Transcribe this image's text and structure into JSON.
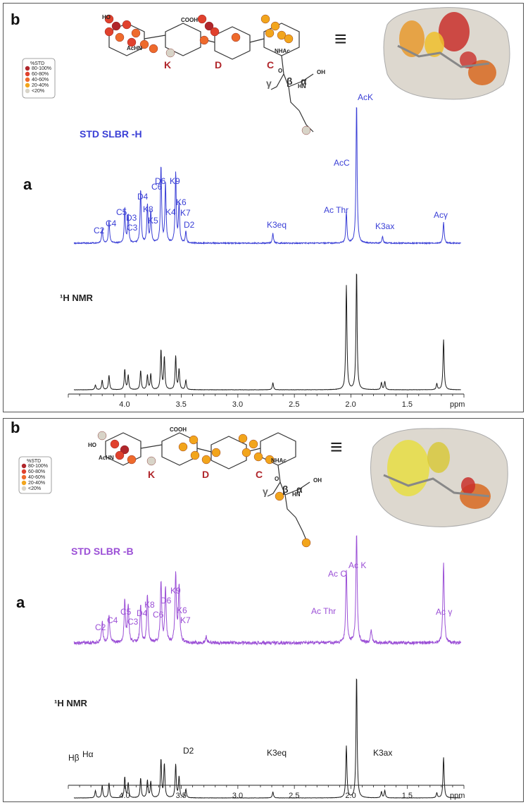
{
  "colors": {
    "std_top": "#3a3fd6",
    "std_bottom": "#9b4fd6",
    "nmr": "#1a1a1a",
    "p80": "#b0262b",
    "p60": "#e0412d",
    "p40": "#ee6a2c",
    "p20": "#f2a51c",
    "p0": "#d8d4c8"
  },
  "panel_top": {
    "label_b": "b",
    "label_a": "a",
    "std_title": "STD SLBR  -H",
    "nmr_title": "¹H NMR",
    "legend_title": "%STD",
    "legend_items": [
      "80-100%",
      "60-80%",
      "40-60%",
      "20-40%",
      "<20%"
    ],
    "rings": [
      "K",
      "D",
      "C"
    ],
    "greek": [
      "γ",
      "β",
      "α"
    ],
    "chem_labels": [
      "COOH",
      "AcHN",
      "HO",
      "NHAc",
      "HN",
      "O",
      "OH"
    ],
    "equiv": "≡",
    "std_peaks": [
      "C2",
      "C4",
      "C5",
      "D3",
      "C3",
      "D4",
      "K8",
      "K5",
      "C6",
      "D6",
      "K9",
      "K4",
      "K6",
      "K7",
      "D2",
      "K3eq",
      "Ac Thr",
      "AcC",
      "AcK",
      "K3ax",
      "Acγ"
    ],
    "nmr_peaks": []
  },
  "panel_bottom": {
    "label_b": "b",
    "label_a": "a",
    "std_title": "STD SLBR  -B",
    "nmr_title": "¹H NMR",
    "legend_title": "%STD",
    "legend_items": [
      "80-100%",
      "60-80%",
      "40-60%",
      "20-40%",
      "<20%"
    ],
    "rings": [
      "K",
      "D",
      "C"
    ],
    "greek": [
      "γ",
      "β",
      "α"
    ],
    "chem_labels": [
      "COOH",
      "AcHN",
      "HO",
      "NHAc",
      "HN",
      "O",
      "OH"
    ],
    "equiv": "≡",
    "std_peaks": [
      "C2",
      "C4",
      "C5",
      "C3",
      "D4",
      "K8",
      "C6",
      "D6",
      "K9",
      "K6",
      "K7",
      "Ac Thr",
      "Ac C",
      "Ac K",
      "Ac γ"
    ],
    "nmr_peaks": [
      "Hβ",
      "Hα",
      "D2",
      "K3eq",
      "K3ax"
    ]
  },
  "chart_data": [
    {
      "type": "line",
      "panel": "top",
      "xlabel": "ppm",
      "xlim": [
        4.5,
        1.0
      ],
      "x_ticks": [
        "4.0",
        "3.5",
        "3.0",
        "2.5",
        "2.0",
        "1.5",
        "ppm"
      ],
      "series": [
        {
          "name": "STD SLBR -H",
          "peaks": [
            [
              4.2,
              0.1
            ],
            [
              4.14,
              0.16
            ],
            [
              4.0,
              0.25
            ],
            [
              3.97,
              0.2
            ],
            [
              3.86,
              0.38
            ],
            [
              3.8,
              0.27
            ],
            [
              3.77,
              0.22
            ],
            [
              3.68,
              0.55
            ],
            [
              3.64,
              0.42
            ],
            [
              3.55,
              0.5
            ],
            [
              3.52,
              0.28
            ],
            [
              3.46,
              0.08
            ],
            [
              2.69,
              0.07
            ],
            [
              2.04,
              0.22
            ],
            [
              1.95,
              1.0
            ],
            [
              1.72,
              0.05
            ],
            [
              1.18,
              0.15
            ]
          ]
        },
        {
          "name": "1H NMR",
          "peaks": [
            [
              4.26,
              0.04
            ],
            [
              4.2,
              0.08
            ],
            [
              4.14,
              0.12
            ],
            [
              4.0,
              0.17
            ],
            [
              3.97,
              0.12
            ],
            [
              3.86,
              0.16
            ],
            [
              3.8,
              0.12
            ],
            [
              3.77,
              0.13
            ],
            [
              3.68,
              0.33
            ],
            [
              3.65,
              0.27
            ],
            [
              3.55,
              0.28
            ],
            [
              3.52,
              0.17
            ],
            [
              3.46,
              0.08
            ],
            [
              2.69,
              0.06
            ],
            [
              2.04,
              0.87
            ],
            [
              1.95,
              1.0
            ],
            [
              1.73,
              0.06
            ],
            [
              1.7,
              0.07
            ],
            [
              1.24,
              0.05
            ],
            [
              1.18,
              0.42
            ]
          ]
        }
      ]
    },
    {
      "type": "line",
      "panel": "bottom",
      "xlabel": "ppm",
      "xlim": [
        4.5,
        1.0
      ],
      "x_ticks": [
        "4.0",
        "3.5",
        "3.0",
        "2.5",
        "2.0",
        "1.5",
        "ppm"
      ],
      "series": [
        {
          "name": "STD SLBR -B",
          "peaks": [
            [
              4.2,
              0.16
            ],
            [
              4.14,
              0.2
            ],
            [
              4.0,
              0.32
            ],
            [
              3.97,
              0.28
            ],
            [
              3.86,
              0.28
            ],
            [
              3.8,
              0.36
            ],
            [
              3.68,
              0.46
            ],
            [
              3.64,
              0.4
            ],
            [
              3.55,
              0.52
            ],
            [
              3.52,
              0.42
            ],
            [
              3.28,
              0.05
            ],
            [
              2.04,
              0.55
            ],
            [
              1.95,
              0.82
            ],
            [
              1.82,
              0.1
            ],
            [
              1.18,
              0.6
            ]
          ]
        },
        {
          "name": "1H NMR",
          "peaks": [
            [
              4.26,
              0.06
            ],
            [
              4.2,
              0.1
            ],
            [
              4.14,
              0.12
            ],
            [
              4.0,
              0.17
            ],
            [
              3.97,
              0.12
            ],
            [
              3.86,
              0.16
            ],
            [
              3.8,
              0.14
            ],
            [
              3.77,
              0.13
            ],
            [
              3.68,
              0.31
            ],
            [
              3.65,
              0.27
            ],
            [
              3.55,
              0.27
            ],
            [
              3.52,
              0.17
            ],
            [
              3.46,
              0.07
            ],
            [
              2.69,
              0.05
            ],
            [
              2.04,
              0.42
            ],
            [
              1.95,
              1.0
            ],
            [
              1.73,
              0.05
            ],
            [
              1.7,
              0.06
            ],
            [
              1.24,
              0.04
            ],
            [
              1.18,
              0.33
            ]
          ]
        }
      ]
    }
  ]
}
